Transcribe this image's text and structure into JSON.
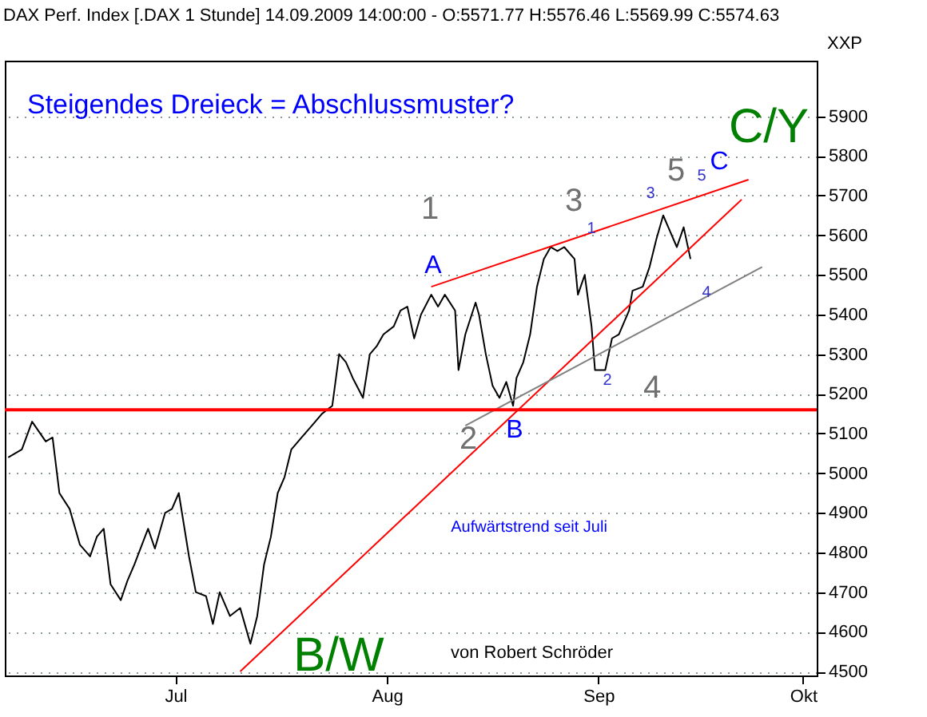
{
  "chart_data": {
    "type": "line",
    "title": "DAX Perf. Index [.DAX  1 Stunde] 14.09.2009 14:00:00 - O:5571.77 H:5576.46 L:5569.99 C:5574.63",
    "subtitle": "Steigendes Dreieck = Abschlussmuster?",
    "ylabel": "XXP",
    "xlim": [
      "2009-06-06",
      "2009-10-03"
    ],
    "xticks": [
      {
        "value": "2009-07-01",
        "label": "Jul"
      },
      {
        "value": "2009-08-01",
        "label": "Aug"
      },
      {
        "value": "2009-09-01",
        "label": "Sep"
      },
      {
        "value": "2009-10-01",
        "label": "Okt"
      }
    ],
    "ylim": [
      4490,
      6040
    ],
    "yticks": [
      4500,
      4600,
      4700,
      4800,
      4900,
      5000,
      5100,
      5200,
      5300,
      5400,
      5500,
      5600,
      5700,
      5800,
      5900
    ],
    "grid": "y",
    "line_style": "solid",
    "series": [
      {
        "color": "#000000",
        "x": [
          "2009-06-06T12:00",
          "2009-06-08T12:00",
          "2009-06-10",
          "2009-06-12",
          "2009-06-13",
          "2009-06-14",
          "2009-06-15T12:00",
          "2009-06-17",
          "2009-06-18T12:00",
          "2009-06-19T12:00",
          "2009-06-20T12:00",
          "2009-06-21T12:00",
          "2009-06-23",
          "2009-06-24",
          "2009-06-25",
          "2009-06-27",
          "2009-06-28",
          "2009-06-29T12:00",
          "2009-06-30T12:00",
          "2009-07-01T12:00",
          "2009-07-03",
          "2009-07-04",
          "2009-07-05T12:00",
          "2009-07-06T12:00",
          "2009-07-07T12:00",
          "2009-07-09",
          "2009-07-10T12:00",
          "2009-07-11T12:00",
          "2009-07-12",
          "2009-07-13",
          "2009-07-14",
          "2009-07-15",
          "2009-07-16",
          "2009-07-17",
          "2009-07-18",
          "2009-07-19T12:00",
          "2009-07-21",
          "2009-07-22T12:00",
          "2009-07-24",
          "2009-07-25",
          "2009-07-26",
          "2009-07-27",
          "2009-07-28T12:00",
          "2009-07-29T12:00",
          "2009-07-30T12:00",
          "2009-07-31T12:00",
          "2009-08-02",
          "2009-08-03",
          "2009-08-04",
          "2009-08-05",
          "2009-08-06",
          "2009-08-07T12:00",
          "2009-08-08T12:00",
          "2009-08-09T12:00",
          "2009-08-11",
          "2009-08-11T12:00",
          "2009-08-12T12:00",
          "2009-08-14",
          "2009-08-14T12:00",
          "2009-08-15T12:00",
          "2009-08-16T12:00",
          "2009-08-17T12:00",
          "2009-08-18T12:00",
          "2009-08-19T12:00",
          "2009-08-20",
          "2009-08-21",
          "2009-08-22",
          "2009-08-23",
          "2009-08-24",
          "2009-08-25",
          "2009-08-26",
          "2009-08-27",
          "2009-08-28T12:00",
          "2009-08-29",
          "2009-08-30",
          "2009-08-31",
          "2009-08-31T12:00",
          "2009-09-02",
          "2009-09-03",
          "2009-09-04",
          "2009-09-05T12:00",
          "2009-09-06",
          "2009-09-07T12:00",
          "2009-09-08T12:00",
          "2009-09-09T12:00",
          "2009-09-10T12:00",
          "2009-09-11T12:00",
          "2009-09-12T12:00",
          "2009-09-13T12:00",
          "2009-09-14T12:00"
        ],
        "values": [
          5040,
          5060,
          5130,
          5080,
          5090,
          4950,
          4910,
          4820,
          4790,
          4840,
          4860,
          4720,
          4680,
          4730,
          4770,
          4860,
          4810,
          4900,
          4910,
          4950,
          4790,
          4700,
          4690,
          4620,
          4700,
          4640,
          4660,
          4600,
          4570,
          4640,
          4770,
          4840,
          4950,
          4990,
          5060,
          5090,
          5120,
          5150,
          5170,
          5300,
          5280,
          5240,
          5190,
          5300,
          5320,
          5350,
          5370,
          5410,
          5420,
          5340,
          5400,
          5450,
          5420,
          5450,
          5410,
          5260,
          5350,
          5430,
          5400,
          5300,
          5220,
          5190,
          5230,
          5170,
          5240,
          5280,
          5350,
          5470,
          5540,
          5570,
          5560,
          5570,
          5540,
          5450,
          5500,
          5370,
          5260,
          5260,
          5340,
          5350,
          5410,
          5460,
          5470,
          5520,
          5590,
          5650,
          5610,
          5570,
          5620,
          5540
        ]
      },
      {
        "color": "#ff0000",
        "x": [
          "2009-08-07T12:00",
          "2009-09-23"
        ],
        "values": [
          5470,
          5740
        ]
      },
      {
        "color": "#ff0000",
        "x": [
          "2009-07-10T12:00",
          "2009-09-22"
        ],
        "values": [
          4500,
          5690
        ]
      },
      {
        "color": "#808080",
        "x": [
          "2009-08-12T12:00",
          "2009-09-25"
        ],
        "values": [
          5120,
          5520
        ]
      }
    ],
    "ref_lines": [
      {
        "axis": "y",
        "value": 5160,
        "color": "#ff0000"
      }
    ],
    "annotations": [
      "1",
      "A",
      "3",
      "1",
      "5",
      "3",
      "5",
      "C",
      "C/Y",
      "4",
      "2",
      "4",
      "2",
      "B",
      "B/W",
      "Aufwärtstrend seit Juli",
      "von Robert Schröder"
    ]
  }
}
